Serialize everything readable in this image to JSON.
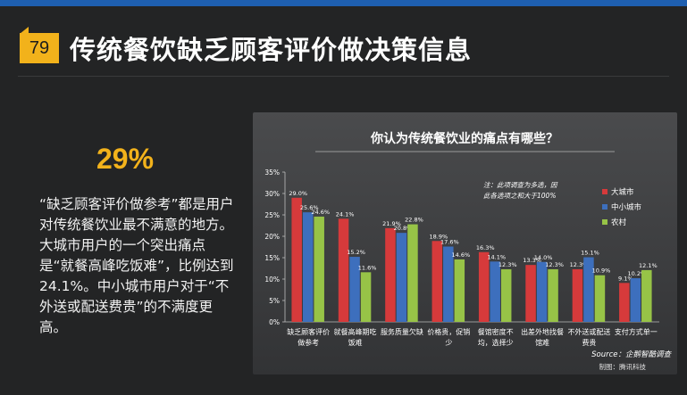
{
  "slide": {
    "number": "79",
    "title": "传统餐饮缺乏顾客评价做决策信息",
    "stat": "29%",
    "description": "“缺乏顾客评价做参考”都是用户对传统餐饮业最不满意的地方。大城市用户的一个突出痛点是“就餐高峰吃饭难”，比例达到24.1%。中小城市用户对于“不外送或配送费贵”的不满度更高。"
  },
  "colors": {
    "accent": "#f2b21b",
    "top_bar": "#1e5fb0"
  },
  "chart_data": {
    "type": "bar",
    "title": "你认为传统餐饮业的痛点有哪些？",
    "categories": [
      [
        "缺乏顾客评价",
        "做参考"
      ],
      [
        "就餐高峰期吃",
        "饭难"
      ],
      [
        "服务质量欠缺"
      ],
      [
        "价格贵，促销",
        "少"
      ],
      [
        "餐馆密度不",
        "均，选择少"
      ],
      [
        "出差外地找餐",
        "馆难"
      ],
      [
        "不外送或配送",
        "费贵"
      ],
      [
        "支付方式单一"
      ]
    ],
    "series": [
      {
        "name": "大城市",
        "color": "#d63a3b",
        "values": [
          29.0,
          24.1,
          21.9,
          18.9,
          16.3,
          13.3,
          12.3,
          9.1
        ]
      },
      {
        "name": "中小城市",
        "color": "#3d6fbd",
        "values": [
          25.6,
          15.2,
          20.8,
          17.6,
          14.1,
          14.0,
          15.1,
          10.2
        ]
      },
      {
        "name": "农村",
        "color": "#97c347",
        "values": [
          24.6,
          11.6,
          22.8,
          14.6,
          12.3,
          12.3,
          10.9,
          12.1
        ]
      }
    ],
    "ylim": [
      0,
      35
    ],
    "ytick_step": 5,
    "ytick_suffix": "%",
    "value_suffix": "%",
    "note": [
      "注：此项调查为多选，因",
      "此各选项之和大于100%"
    ],
    "source": "Source：企鹅智酷调查",
    "maker": "制图：腾讯科技",
    "grid": false,
    "legend_position": "right"
  }
}
